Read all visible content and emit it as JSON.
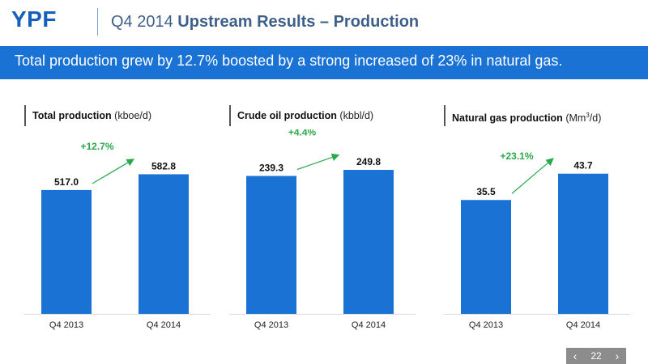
{
  "header": {
    "logo": "YPF",
    "title_prefix": "Q4 2014",
    "title_bold": "Upstream Results – Production"
  },
  "banner": {
    "text": "Total production grew by 12.7% boosted by a strong increased of 23% in natural gas."
  },
  "colors": {
    "bar": "#1a73d4",
    "growth": "#2aa84a",
    "banner": "#1a73d4",
    "brand": "#1560b8"
  },
  "nav": {
    "page": "22",
    "prev_icon": "chevron-left",
    "next_icon": "chevron-right"
  },
  "chart_data": [
    {
      "type": "bar",
      "title_bold": "Total production",
      "unit": "(kboe/d)",
      "categories": [
        "Q4 2013",
        "Q4 2014"
      ],
      "values": [
        517.0,
        582.8
      ],
      "value_labels": [
        "517.0",
        "582.8"
      ],
      "growth_label": "+12.7%",
      "ylim": [
        0,
        770
      ]
    },
    {
      "type": "bar",
      "title_bold": "Crude oil production",
      "unit": "(kbbl/d)",
      "categories": [
        "Q4 2013",
        "Q4 2014"
      ],
      "values": [
        239.3,
        249.8
      ],
      "value_labels": [
        "239.3",
        "249.8"
      ],
      "growth_label": "+4.4%",
      "ylim": [
        0,
        320
      ]
    },
    {
      "type": "bar",
      "title_bold": "Natural gas production",
      "unit_pre": "(Mm",
      "unit_sup": "3",
      "unit_post": "/d)",
      "categories": [
        "Q4 2013",
        "Q4 2014"
      ],
      "values": [
        35.5,
        43.7
      ],
      "value_labels": [
        "35.5",
        "43.7"
      ],
      "growth_label": "+23.1%",
      "ylim": [
        0,
        57.5
      ]
    }
  ]
}
